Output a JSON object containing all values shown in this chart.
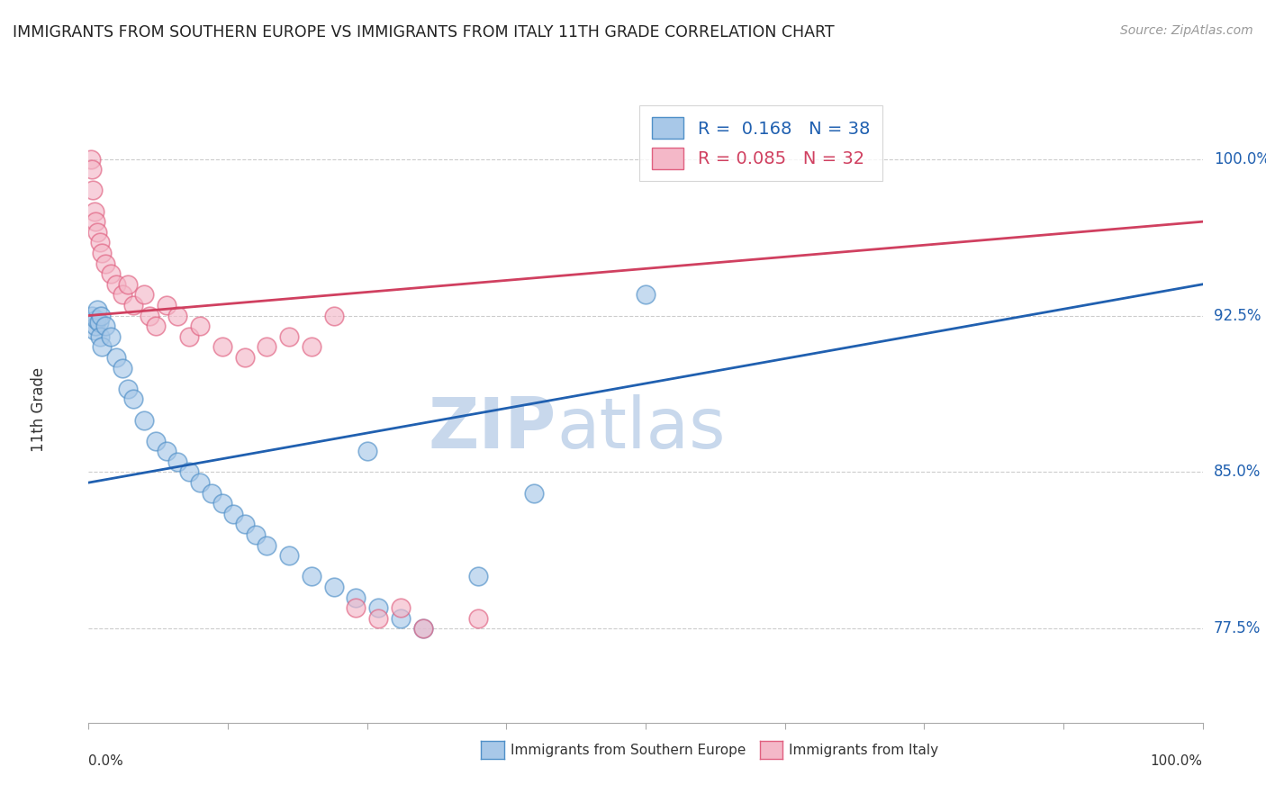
{
  "title": "IMMIGRANTS FROM SOUTHERN EUROPE VS IMMIGRANTS FROM ITALY 11TH GRADE CORRELATION CHART",
  "source_text": "Source: ZipAtlas.com",
  "ylabel": "11th Grade",
  "right_yticks": [
    77.5,
    85.0,
    92.5,
    100.0
  ],
  "right_ytick_labels": [
    "77.5%",
    "85.0%",
    "92.5%",
    "100.0%"
  ],
  "xlim": [
    0,
    100
  ],
  "ylim": [
    73,
    103
  ],
  "blue_R": 0.168,
  "blue_N": 38,
  "pink_R": 0.085,
  "pink_N": 32,
  "blue_fill_color": "#a8c8e8",
  "pink_fill_color": "#f4b8c8",
  "blue_edge_color": "#5090c8",
  "pink_edge_color": "#e06080",
  "blue_line_color": "#2060b0",
  "pink_line_color": "#d04060",
  "blue_label_color": "#2060b0",
  "pink_label_color": "#d04060",
  "watermark_zip": "ZIP",
  "watermark_atlas": "atlas",
  "watermark_color": "#c8d8ec",
  "legend_label_blue": "Immigrants from Southern Europe",
  "legend_label_pink": "Immigrants from Italy",
  "blue_scatter_x": [
    0.3,
    0.5,
    0.6,
    0.7,
    0.8,
    0.9,
    1.0,
    1.1,
    1.2,
    1.5,
    2.0,
    2.5,
    3.0,
    3.5,
    4.0,
    5.0,
    6.0,
    7.0,
    8.0,
    9.0,
    10.0,
    11.0,
    12.0,
    13.0,
    14.0,
    15.0,
    16.0,
    18.0,
    20.0,
    22.0,
    24.0,
    26.0,
    28.0,
    30.0,
    35.0,
    40.0,
    50.0,
    25.0
  ],
  "blue_scatter_y": [
    92.5,
    91.8,
    92.0,
    92.3,
    92.8,
    92.2,
    91.5,
    92.5,
    91.0,
    92.0,
    91.5,
    90.5,
    90.0,
    89.0,
    88.5,
    87.5,
    86.5,
    86.0,
    85.5,
    85.0,
    84.5,
    84.0,
    83.5,
    83.0,
    82.5,
    82.0,
    81.5,
    81.0,
    80.0,
    79.5,
    79.0,
    78.5,
    78.0,
    77.5,
    80.0,
    84.0,
    93.5,
    86.0
  ],
  "pink_scatter_x": [
    0.2,
    0.3,
    0.4,
    0.5,
    0.6,
    0.8,
    1.0,
    1.2,
    1.5,
    2.0,
    2.5,
    3.0,
    3.5,
    4.0,
    5.0,
    5.5,
    6.0,
    7.0,
    8.0,
    9.0,
    10.0,
    12.0,
    14.0,
    16.0,
    18.0,
    20.0,
    22.0,
    24.0,
    26.0,
    28.0,
    30.0,
    35.0
  ],
  "pink_scatter_y": [
    100.0,
    99.5,
    98.5,
    97.5,
    97.0,
    96.5,
    96.0,
    95.5,
    95.0,
    94.5,
    94.0,
    93.5,
    94.0,
    93.0,
    93.5,
    92.5,
    92.0,
    93.0,
    92.5,
    91.5,
    92.0,
    91.0,
    90.5,
    91.0,
    91.5,
    91.0,
    92.5,
    78.5,
    78.0,
    78.5,
    77.5,
    78.0
  ],
  "blue_trend_x": [
    0,
    100
  ],
  "blue_trend_y": [
    84.5,
    94.0
  ],
  "pink_trend_x": [
    0,
    100
  ],
  "pink_trend_y": [
    92.5,
    97.0
  ],
  "bottom_legend_items": [
    {
      "label": "Immigrants from Southern Europe",
      "color": "#a8c8e8",
      "edge": "#5090c8"
    },
    {
      "label": "Immigrants from Italy",
      "color": "#f4b8c8",
      "edge": "#e06080"
    }
  ]
}
